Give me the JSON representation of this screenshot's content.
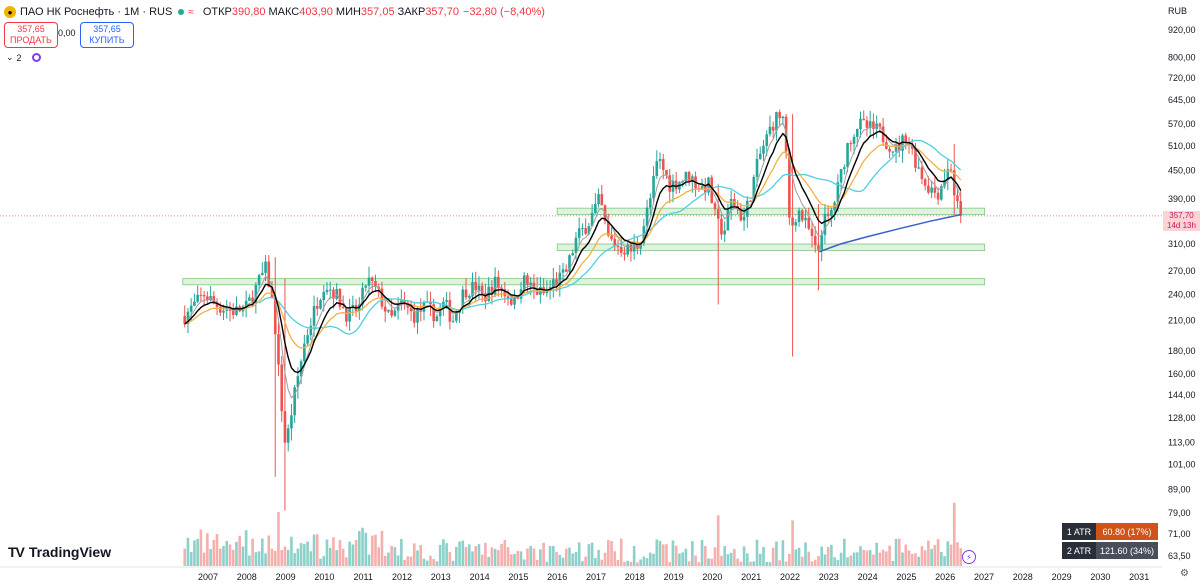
{
  "header": {
    "symbol": "ПАО НК Роснефть · 1М · RUS",
    "open_label": "ОТКР",
    "open_value": "390,80",
    "high_label": "МАКС",
    "high_value": "403,90",
    "low_label": "МИН",
    "low_value": "357,05",
    "close_label": "ЗАКР",
    "close_value": "357,70",
    "change": "−32,80 (−8,40%)"
  },
  "trade": {
    "sell_price": "357,65",
    "sell_label": "ПРОДАТЬ",
    "spread": "0,00",
    "buy_price": "357,65",
    "buy_label": "КУПИТЬ"
  },
  "indicators_count": "2",
  "brand": "TradingView",
  "currency": "RUB",
  "last_price": "357,70",
  "countdown": "14d 13h",
  "atr": [
    {
      "label": "1 ATR",
      "value": "60.80 (17%)"
    },
    {
      "label": "2 ATR",
      "value": "121.60 (34%)"
    }
  ],
  "colors": {
    "up": "#26a69a",
    "down": "#ef5350",
    "ema_fast": "#9e9e9e",
    "ema_mid": "#000000",
    "ma_orange": "#f5b041",
    "ma_cyan": "#4dd0e1",
    "ma_blue": "#3a5fc8",
    "zone": "#a5d6a7"
  },
  "chart_data": {
    "type": "candlestick",
    "timeframe": "1M",
    "y_scale": "log",
    "y_ticks": [
      "920,00",
      "800,00",
      "720,00",
      "645,00",
      "570,00",
      "510,00",
      "450,00",
      "390,00",
      "357,70",
      "310,00",
      "270,00",
      "240,00",
      "210,00",
      "180,00",
      "160,00",
      "144,00",
      "128,00",
      "113,00",
      "101,00",
      "89,00",
      "79,00",
      "71,00",
      "63,50"
    ],
    "y_tick_values": [
      920,
      800,
      720,
      645,
      570,
      510,
      450,
      390,
      357.7,
      310,
      270,
      240,
      210,
      180,
      160,
      144,
      128,
      113,
      101,
      89,
      79,
      71,
      63.5
    ],
    "x_ticks": [
      "2007",
      "2008",
      "2009",
      "2010",
      "2011",
      "2012",
      "2013",
      "2014",
      "2015",
      "2016",
      "2017",
      "2018",
      "2019",
      "2020",
      "2021",
      "2022",
      "2023",
      "2024",
      "2025",
      "2026",
      "2027",
      "2028",
      "2029",
      "2030",
      "2031"
    ],
    "x_range": [
      2006.25,
      2031.25
    ],
    "price_path": [
      [
        2006.4,
        215
      ],
      [
        2006.6,
        225
      ],
      [
        2006.9,
        240
      ],
      [
        2007.3,
        225
      ],
      [
        2007.7,
        220
      ],
      [
        2008.0,
        225
      ],
      [
        2008.3,
        255
      ],
      [
        2008.5,
        275
      ],
      [
        2008.7,
        220
      ],
      [
        2008.85,
        150
      ],
      [
        2009.0,
        110
      ],
      [
        2009.2,
        140
      ],
      [
        2009.5,
        190
      ],
      [
        2009.8,
        230
      ],
      [
        2010.0,
        255
      ],
      [
        2010.3,
        240
      ],
      [
        2010.6,
        215
      ],
      [
        2010.9,
        225
      ],
      [
        2011.1,
        260
      ],
      [
        2011.4,
        240
      ],
      [
        2011.7,
        210
      ],
      [
        2012.0,
        230
      ],
      [
        2012.3,
        215
      ],
      [
        2012.6,
        225
      ],
      [
        2012.9,
        215
      ],
      [
        2013.1,
        230
      ],
      [
        2013.3,
        210
      ],
      [
        2013.6,
        245
      ],
      [
        2013.9,
        250
      ],
      [
        2014.1,
        235
      ],
      [
        2014.4,
        255
      ],
      [
        2014.7,
        240
      ],
      [
        2014.9,
        230
      ],
      [
        2015.1,
        260
      ],
      [
        2015.4,
        245
      ],
      [
        2015.7,
        240
      ],
      [
        2015.9,
        255
      ],
      [
        2016.2,
        265
      ],
      [
        2016.5,
        320
      ],
      [
        2016.8,
        345
      ],
      [
        2017.1,
        390
      ],
      [
        2017.3,
        320
      ],
      [
        2017.6,
        305
      ],
      [
        2017.9,
        300
      ],
      [
        2018.1,
        310
      ],
      [
        2018.4,
        390
      ],
      [
        2018.6,
        480
      ],
      [
        2018.9,
        420
      ],
      [
        2019.1,
        425
      ],
      [
        2019.4,
        440
      ],
      [
        2019.7,
        410
      ],
      [
        2019.9,
        420
      ],
      [
        2020.1,
        345
      ],
      [
        2020.3,
        330
      ],
      [
        2020.5,
        390
      ],
      [
        2020.8,
        350
      ],
      [
        2020.95,
        390
      ],
      [
        2021.2,
        480
      ],
      [
        2021.5,
        560
      ],
      [
        2021.7,
        600
      ],
      [
        2021.85,
        580
      ],
      [
        2022.0,
        330
      ],
      [
        2022.2,
        370
      ],
      [
        2022.5,
        330
      ],
      [
        2022.7,
        290
      ],
      [
        2022.85,
        350
      ],
      [
        2023.0,
        350
      ],
      [
        2023.2,
        400
      ],
      [
        2023.5,
        520
      ],
      [
        2023.75,
        570
      ],
      [
        2024.0,
        560
      ],
      [
        2024.3,
        550
      ],
      [
        2024.5,
        520
      ],
      [
        2024.75,
        500
      ],
      [
        2025.0,
        540
      ],
      [
        2025.25,
        470
      ],
      [
        2025.5,
        420
      ],
      [
        2025.8,
        400
      ],
      [
        2026.0,
        440
      ],
      [
        2026.15,
        460
      ],
      [
        2026.25,
        390
      ],
      [
        2026.4,
        357.7
      ]
    ],
    "spikes": [
      [
        2008.75,
        290,
        95
      ],
      [
        2008.95,
        260,
        80
      ],
      [
        2020.18,
        420,
        228
      ],
      [
        2022.05,
        600,
        175
      ],
      [
        2022.7,
        380,
        245
      ],
      [
        2026.2,
        515,
        360
      ]
    ],
    "volume_spikes": [
      [
        2008.8,
        100
      ],
      [
        2020.15,
        92
      ],
      [
        2022.05,
        80
      ],
      [
        2026.2,
        122
      ],
      [
        2026.3,
        28
      ]
    ],
    "support_zones": [
      [
        360,
        372
      ],
      [
        300,
        310
      ],
      [
        252,
        260
      ]
    ],
    "ma_blue": [
      [
        2022.75,
        298
      ],
      [
        2023.3,
        310
      ],
      [
        2024.0,
        322
      ],
      [
        2024.8,
        335
      ],
      [
        2025.6,
        348
      ],
      [
        2026.4,
        360
      ]
    ]
  }
}
